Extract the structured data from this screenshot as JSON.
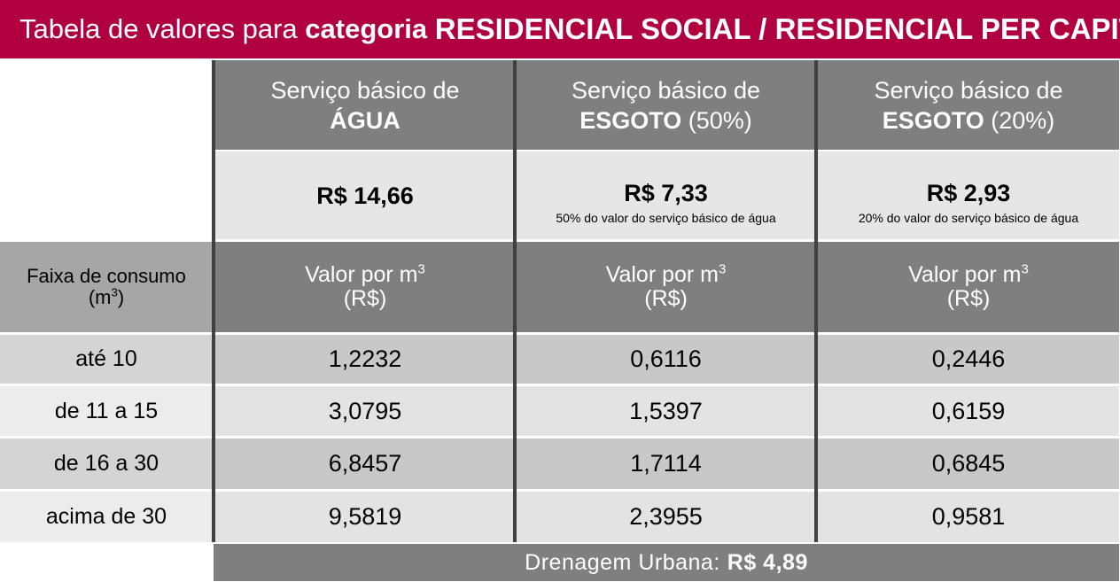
{
  "title": {
    "prefix": "Tabela de valores para",
    "category_word": "categoria",
    "category_name": "RESIDENCIAL SOCIAL / RESIDENCIAL PER CAPITA"
  },
  "services": [
    {
      "line1": "Serviço básico de",
      "bold": "ÁGUA",
      "suffix": "",
      "price": "R$ 14,66",
      "note": ""
    },
    {
      "line1": "Serviço básico de",
      "bold": "ESGOTO",
      "suffix": " (50%)",
      "price": "R$ 7,33",
      "note": "50% do valor do serviço básico de água"
    },
    {
      "line1": "Serviço básico de",
      "bold": "ESGOTO",
      "suffix": " (20%)",
      "price": "R$ 2,93",
      "note": "20% do valor do serviço básico de água"
    }
  ],
  "consumption_header": {
    "line1": "Faixa de consumo",
    "line2_prefix": "(m",
    "line2_sup": "3",
    "line2_suffix": ")"
  },
  "value_header": {
    "line1": "Valor por m",
    "sup": "3",
    "line2": "(R$)"
  },
  "rows": [
    {
      "range": "até 10",
      "values": [
        "1,2232",
        "0,6116",
        "0,2446"
      ]
    },
    {
      "range": "de 11 a 15",
      "values": [
        "3,0795",
        "1,5397",
        "0,6159"
      ]
    },
    {
      "range": "de 16 a 30",
      "values": [
        "6,8457",
        "1,7114",
        "0,6845"
      ]
    },
    {
      "range": "acima de 30",
      "values": [
        "9,5819",
        "2,3955",
        "0,9581"
      ]
    }
  ],
  "footer": {
    "label": "Drenagem Urbana:",
    "value": "R$ 4,89"
  },
  "colors": {
    "title_bg": "#b0003f",
    "header_bg": "#7f7f7f"
  }
}
